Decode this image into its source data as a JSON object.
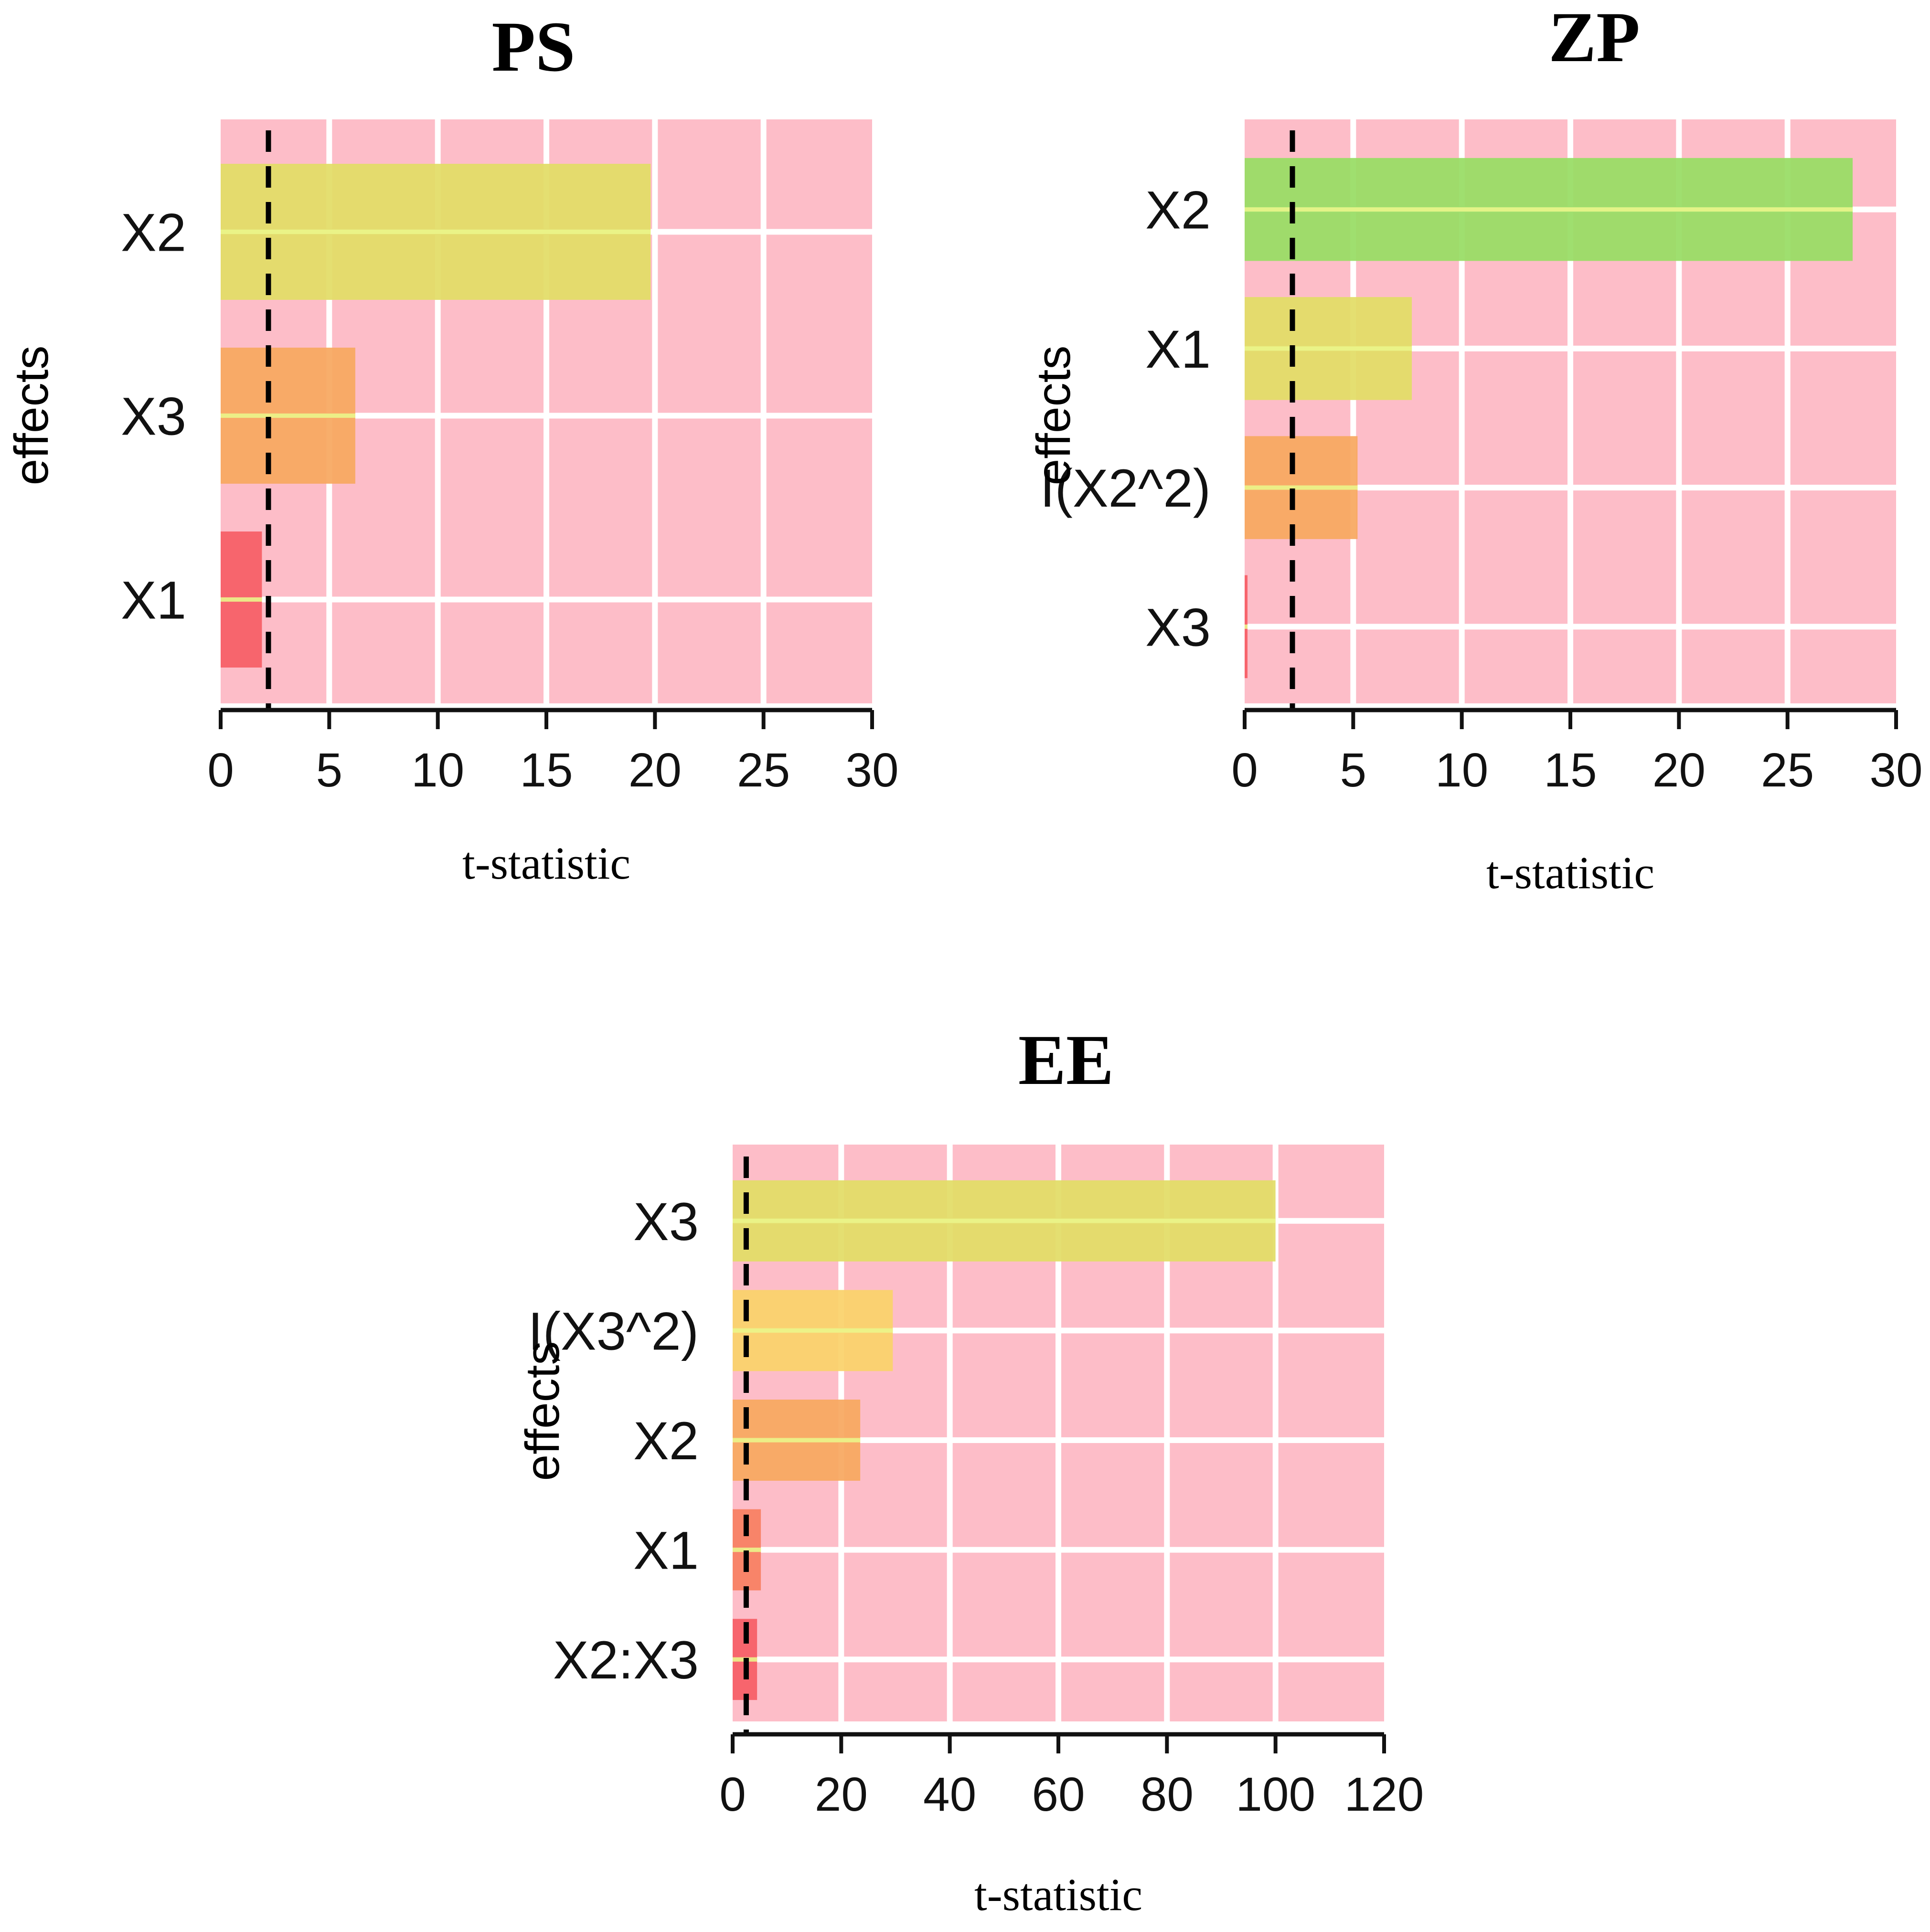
{
  "chart_data": [
    {
      "type": "bar",
      "orientation": "horizontal",
      "title": "PS",
      "xlabel": "t-statistic",
      "ylabel": "effects",
      "xlim": [
        0,
        30
      ],
      "xticks": [
        "0",
        "5",
        "10",
        "15",
        "20",
        "25",
        "30"
      ],
      "categories": [
        "X2",
        "X3",
        "X1"
      ],
      "values": [
        19.8,
        6.2,
        1.9
      ],
      "bar_colors": [
        "#e2dd66",
        "#f8a860",
        "#f65e66"
      ],
      "critical_value": 2.2,
      "grid": true
    },
    {
      "type": "bar",
      "orientation": "horizontal",
      "title": "ZP",
      "xlabel": "t-statistic",
      "ylabel": "effects",
      "xlim": [
        0,
        30
      ],
      "xticks": [
        "0",
        "5",
        "10",
        "15",
        "20",
        "25",
        "30"
      ],
      "categories": [
        "X2",
        "X1",
        "I(X2^2)",
        "X3"
      ],
      "values": [
        28,
        7.7,
        5.2,
        0.1
      ],
      "bar_colors": [
        "#98dd64",
        "#e2dd66",
        "#f8a860",
        "#f65e66"
      ],
      "critical_value": 2.2,
      "grid": true
    },
    {
      "type": "bar",
      "orientation": "horizontal",
      "title": "EE",
      "xlabel": "t-statistic",
      "ylabel": "effects",
      "xlim": [
        0,
        120
      ],
      "xticks": [
        "0",
        "20",
        "40",
        "60",
        "80",
        "100",
        "120"
      ],
      "categories": [
        "X3",
        "I(X3^2)",
        "X2",
        "X1",
        "X2:X3"
      ],
      "values": [
        100,
        29.5,
        23.5,
        5.2,
        4.5
      ],
      "bar_colors": [
        "#e2dd66",
        "#fad26a",
        "#f8a860",
        "#f77f62",
        "#f65e66"
      ],
      "critical_value": 2.5,
      "grid": true
    }
  ]
}
